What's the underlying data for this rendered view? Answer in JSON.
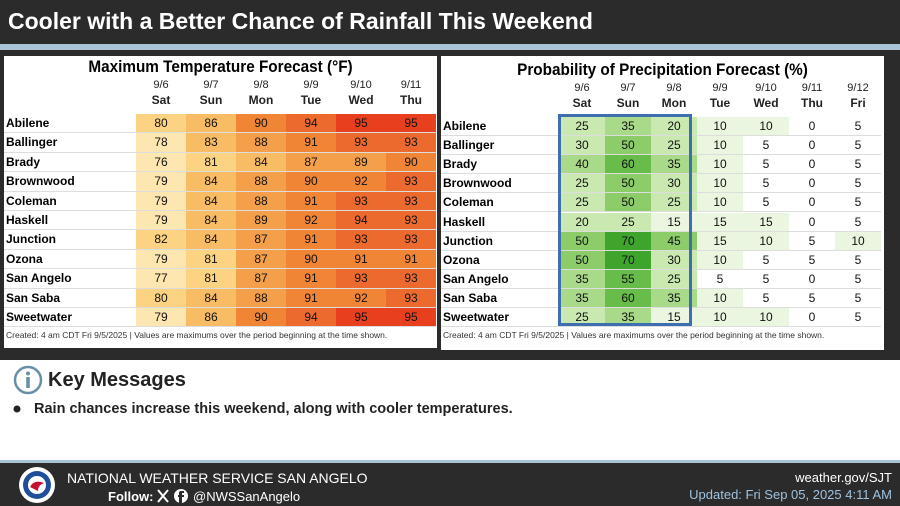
{
  "header": {
    "title": "Cooler with a Better Chance of Rainfall This Weekend"
  },
  "temperature_table": {
    "title": "Maximum Temperature Forecast (°F)",
    "dates": [
      "9/6",
      "9/7",
      "9/8",
      "9/9",
      "9/10",
      "9/11"
    ],
    "days": [
      "Sat",
      "Sun",
      "Mon",
      "Tue",
      "Wed",
      "Thu"
    ],
    "rows": [
      {
        "name": "Abilene",
        "values": [
          80,
          86,
          90,
          94,
          95,
          95
        ]
      },
      {
        "name": "Ballinger",
        "values": [
          78,
          83,
          88,
          91,
          93,
          93
        ]
      },
      {
        "name": "Brady",
        "values": [
          76,
          81,
          84,
          87,
          89,
          90
        ]
      },
      {
        "name": "Brownwood",
        "values": [
          79,
          84,
          88,
          90,
          92,
          93
        ]
      },
      {
        "name": "Coleman",
        "values": [
          79,
          84,
          88,
          91,
          93,
          93
        ]
      },
      {
        "name": "Haskell",
        "values": [
          79,
          84,
          89,
          92,
          94,
          93
        ]
      },
      {
        "name": "Junction",
        "values": [
          82,
          84,
          87,
          91,
          93,
          93
        ]
      },
      {
        "name": "Ozona",
        "values": [
          79,
          81,
          87,
          90,
          91,
          91
        ]
      },
      {
        "name": "San Angelo",
        "values": [
          77,
          81,
          87,
          91,
          93,
          93
        ]
      },
      {
        "name": "San Saba",
        "values": [
          80,
          84,
          88,
          91,
          92,
          93
        ]
      },
      {
        "name": "Sweetwater",
        "values": [
          79,
          86,
          90,
          94,
          95,
          95
        ]
      }
    ],
    "footnote": "Created: 4 am CDT Fri 9/5/2025  |  Values are maximums over the period beginning at the time shown."
  },
  "precipitation_table": {
    "title": "Probability of Precipitation Forecast (%)",
    "dates": [
      "9/6",
      "9/7",
      "9/8",
      "9/9",
      "9/10",
      "9/11",
      "9/12"
    ],
    "days": [
      "Sat",
      "Sun",
      "Mon",
      "Tue",
      "Wed",
      "Thu",
      "Fri"
    ],
    "rows": [
      {
        "name": "Abilene",
        "values": [
          25,
          35,
          20,
          10,
          10,
          0,
          5
        ]
      },
      {
        "name": "Ballinger",
        "values": [
          30,
          50,
          25,
          10,
          5,
          0,
          5
        ]
      },
      {
        "name": "Brady",
        "values": [
          40,
          60,
          35,
          10,
          5,
          0,
          5
        ]
      },
      {
        "name": "Brownwood",
        "values": [
          25,
          50,
          30,
          10,
          5,
          0,
          5
        ]
      },
      {
        "name": "Coleman",
        "values": [
          25,
          50,
          25,
          10,
          5,
          0,
          5
        ]
      },
      {
        "name": "Haskell",
        "values": [
          20,
          25,
          15,
          15,
          15,
          0,
          5
        ]
      },
      {
        "name": "Junction",
        "values": [
          50,
          70,
          45,
          15,
          10,
          5,
          10
        ]
      },
      {
        "name": "Ozona",
        "values": [
          50,
          70,
          30,
          10,
          5,
          5,
          5
        ]
      },
      {
        "name": "San Angelo",
        "values": [
          35,
          55,
          25,
          5,
          5,
          0,
          5
        ]
      },
      {
        "name": "San Saba",
        "values": [
          35,
          60,
          35,
          10,
          5,
          5,
          5
        ]
      },
      {
        "name": "Sweetwater",
        "values": [
          25,
          35,
          15,
          10,
          10,
          0,
          5
        ]
      }
    ],
    "footnote": "Created: 4 am CDT Fri 9/5/2025  |  Values are maximums over the period beginning at the time shown."
  },
  "key_messages": {
    "title": "Key Messages",
    "bullets": [
      "Rain chances increase this weekend, along with cooler temperatures."
    ]
  },
  "footer": {
    "office": "NATIONAL WEATHER SERVICE SAN ANGELO",
    "follow": "Follow:",
    "handle": "@NWSSanAngelo",
    "website": "weather.gov/SJT",
    "updated": "Updated: Fri Sep 05, 2025 4:11 AM"
  }
}
